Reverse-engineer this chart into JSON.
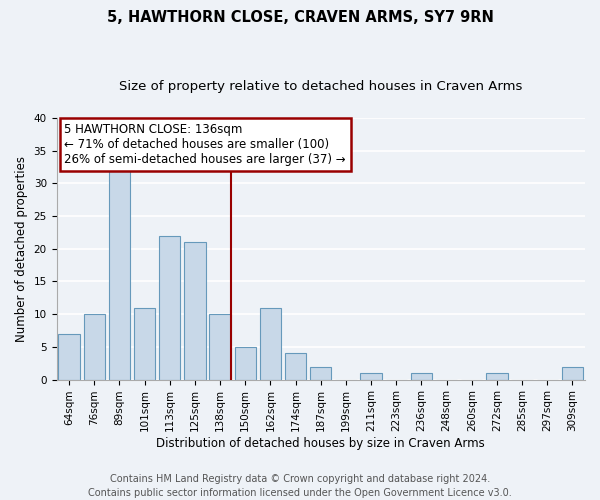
{
  "title": "5, HAWTHORN CLOSE, CRAVEN ARMS, SY7 9RN",
  "subtitle": "Size of property relative to detached houses in Craven Arms",
  "xlabel": "Distribution of detached houses by size in Craven Arms",
  "ylabel": "Number of detached properties",
  "bin_labels": [
    "64sqm",
    "76sqm",
    "89sqm",
    "101sqm",
    "113sqm",
    "125sqm",
    "138sqm",
    "150sqm",
    "162sqm",
    "174sqm",
    "187sqm",
    "199sqm",
    "211sqm",
    "223sqm",
    "236sqm",
    "248sqm",
    "260sqm",
    "272sqm",
    "285sqm",
    "297sqm",
    "309sqm"
  ],
  "bar_heights": [
    7,
    10,
    33,
    11,
    22,
    21,
    10,
    5,
    11,
    4,
    2,
    0,
    1,
    0,
    1,
    0,
    0,
    1,
    0,
    0,
    2
  ],
  "bar_color": "#c8d8e8",
  "bar_edge_color": "#6699bb",
  "property_line_color": "#990000",
  "property_line_bin_index": 6,
  "annotation_title": "5 HAWTHORN CLOSE: 136sqm",
  "annotation_line1": "← 71% of detached houses are smaller (100)",
  "annotation_line2": "26% of semi-detached houses are larger (37) →",
  "annotation_box_facecolor": "#ffffff",
  "annotation_box_edgecolor": "#990000",
  "ylim": [
    0,
    40
  ],
  "yticks": [
    0,
    5,
    10,
    15,
    20,
    25,
    30,
    35,
    40
  ],
  "footer_line1": "Contains HM Land Registry data © Crown copyright and database right 2024.",
  "footer_line2": "Contains public sector information licensed under the Open Government Licence v3.0.",
  "background_color": "#eef2f7",
  "grid_color": "#ffffff",
  "title_fontsize": 10.5,
  "subtitle_fontsize": 9.5,
  "xlabel_fontsize": 8.5,
  "ylabel_fontsize": 8.5,
  "tick_fontsize": 7.5,
  "annotation_fontsize": 8.5,
  "footer_fontsize": 7.0
}
